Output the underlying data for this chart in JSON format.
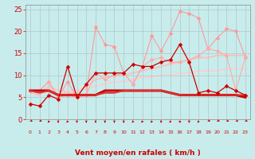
{
  "xlabel": "Vent moyen/en rafales ( km/h )",
  "background_color": "#c8ecec",
  "grid_color": "#b0c8c8",
  "xlim": [
    -0.5,
    23.5
  ],
  "ylim": [
    0,
    26
  ],
  "yticks": [
    0,
    5,
    10,
    15,
    20,
    25
  ],
  "xticks": [
    0,
    1,
    2,
    3,
    4,
    5,
    6,
    7,
    8,
    9,
    10,
    11,
    12,
    13,
    14,
    15,
    16,
    17,
    18,
    19,
    20,
    21,
    22,
    23
  ],
  "series": [
    {
      "x": [
        0,
        1,
        2,
        3,
        4,
        5,
        6,
        7,
        8,
        9,
        10,
        11,
        12,
        13,
        14,
        15,
        16,
        17,
        18,
        19,
        20,
        21,
        22,
        23
      ],
      "y": [
        6.5,
        6.5,
        8.5,
        5.0,
        8.5,
        5.0,
        5.5,
        21.0,
        17.0,
        16.5,
        10.5,
        8.0,
        12.0,
        19.0,
        15.5,
        19.5,
        24.5,
        24.0,
        23.0,
        16.0,
        18.5,
        20.5,
        20.0,
        14.0
      ],
      "color": "#ff9999",
      "marker": "D",
      "markersize": 2.5,
      "linewidth": 0.8,
      "zorder": 2
    },
    {
      "x": [
        0,
        1,
        2,
        3,
        4,
        5,
        6,
        7,
        8,
        9,
        10,
        11,
        12,
        13,
        14,
        15,
        16,
        17,
        18,
        19,
        20,
        21,
        22,
        23
      ],
      "y": [
        6.5,
        6.5,
        8.5,
        5.0,
        5.5,
        5.0,
        5.5,
        10.5,
        9.0,
        10.0,
        10.5,
        8.0,
        12.0,
        13.5,
        14.0,
        13.0,
        13.0,
        13.5,
        14.5,
        16.0,
        15.5,
        14.5,
        6.5,
        14.0
      ],
      "color": "#ffaaaa",
      "marker": "D",
      "markersize": 2.5,
      "linewidth": 0.8,
      "zorder": 2
    },
    {
      "x": [
        0,
        1,
        2,
        3,
        4,
        5,
        6,
        7,
        8,
        9,
        10,
        11,
        12,
        13,
        14,
        15,
        16,
        17,
        18,
        19,
        20,
        21,
        22,
        23
      ],
      "y": [
        3.5,
        3.0,
        5.5,
        4.5,
        12.0,
        5.0,
        8.0,
        10.5,
        10.5,
        10.5,
        10.5,
        12.5,
        12.0,
        12.0,
        13.0,
        13.5,
        17.0,
        13.0,
        6.0,
        6.5,
        6.0,
        7.5,
        6.5,
        5.5
      ],
      "color": "#cc0000",
      "marker": "D",
      "markersize": 2.5,
      "linewidth": 0.9,
      "zorder": 4
    },
    {
      "x": [
        0,
        1,
        2,
        3,
        4,
        5,
        6,
        7,
        8,
        9,
        10,
        11,
        12,
        13,
        14,
        15,
        16,
        17,
        18,
        19,
        20,
        21,
        22,
        23
      ],
      "y": [
        6.0,
        5.5,
        7.5,
        6.5,
        6.0,
        6.0,
        7.5,
        9.0,
        9.5,
        10.0,
        10.0,
        10.5,
        11.0,
        11.5,
        12.0,
        12.5,
        13.0,
        13.5,
        14.0,
        14.0,
        14.5,
        14.5,
        14.5,
        14.5
      ],
      "color": "#ffbbbb",
      "marker": null,
      "markersize": 0,
      "linewidth": 1.2,
      "zorder": 1
    },
    {
      "x": [
        0,
        1,
        2,
        3,
        4,
        5,
        6,
        7,
        8,
        9,
        10,
        11,
        12,
        13,
        14,
        15,
        16,
        17,
        18,
        19,
        20,
        21,
        22,
        23
      ],
      "y": [
        6.5,
        6.0,
        7.0,
        6.5,
        6.5,
        6.5,
        7.0,
        7.5,
        8.0,
        8.5,
        8.5,
        9.0,
        9.5,
        9.5,
        10.0,
        10.0,
        10.5,
        10.5,
        11.0,
        11.0,
        11.0,
        11.5,
        11.5,
        11.5
      ],
      "color": "#ffcccc",
      "marker": null,
      "markersize": 0,
      "linewidth": 1.2,
      "zorder": 1
    },
    {
      "x": [
        0,
        1,
        2,
        3,
        4,
        5,
        6,
        7,
        8,
        9,
        10,
        11,
        12,
        13,
        14,
        15,
        16,
        17,
        18,
        19,
        20,
        21,
        22,
        23
      ],
      "y": [
        6.5,
        6.5,
        6.5,
        5.5,
        5.5,
        5.5,
        5.5,
        5.5,
        6.5,
        6.5,
        6.5,
        6.5,
        6.5,
        6.5,
        6.5,
        6.0,
        5.5,
        5.5,
        5.5,
        5.5,
        5.5,
        5.5,
        5.5,
        5.0
      ],
      "color": "#cc0000",
      "marker": null,
      "markersize": 0,
      "linewidth": 2.2,
      "zorder": 3
    },
    {
      "x": [
        0,
        1,
        2,
        3,
        4,
        5,
        6,
        7,
        8,
        9,
        10,
        11,
        12,
        13,
        14,
        15,
        16,
        17,
        18,
        19,
        20,
        21,
        22,
        23
      ],
      "y": [
        6.5,
        6.0,
        6.5,
        5.5,
        5.5,
        5.5,
        5.5,
        5.5,
        6.0,
        6.0,
        6.5,
        6.5,
        6.5,
        6.5,
        6.5,
        6.0,
        5.5,
        5.5,
        5.5,
        5.5,
        5.5,
        5.5,
        5.5,
        5.5
      ],
      "color": "#dd3333",
      "marker": null,
      "markersize": 0,
      "linewidth": 1.5,
      "zorder": 3
    }
  ],
  "arrow_color": "#cc0000",
  "arrow_angles": [
    225,
    225,
    200,
    180,
    200,
    180,
    180,
    180,
    180,
    180,
    180,
    200,
    200,
    200,
    180,
    200,
    160,
    180,
    200,
    220,
    220,
    225,
    225,
    225
  ]
}
